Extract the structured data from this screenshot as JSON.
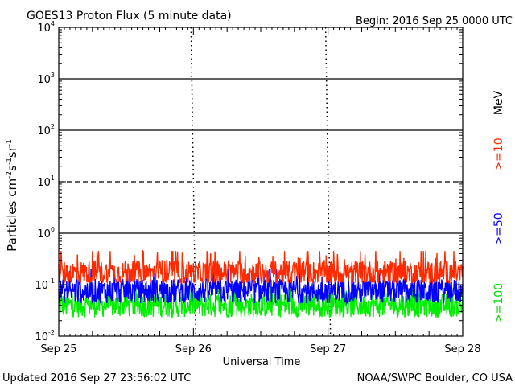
{
  "chart_data": {
    "type": "line",
    "title": "GOES13 Proton Flux (5 minute data)",
    "begin_label": "Begin: 2016 Sep 25 0000 UTC",
    "ylabel_base": "Particles cm",
    "ylabel_exponents": [
      "-2",
      "-1",
      "-1"
    ],
    "ylabel_units": [
      "s",
      "sr"
    ],
    "xlabel": "Universal Time",
    "x_ticks": [
      "Sep 25",
      "Sep 26",
      "Sep 27",
      "Sep 28"
    ],
    "y_scale": "log",
    "ylim": [
      0.01,
      10000
    ],
    "y_ticks": [
      {
        "base": "10",
        "exp": "-2"
      },
      {
        "base": "10",
        "exp": "-1"
      },
      {
        "base": "10",
        "exp": "0"
      },
      {
        "base": "10",
        "exp": "1"
      },
      {
        "base": "10",
        "exp": "2"
      },
      {
        "base": "10",
        "exp": "3"
      },
      {
        "base": "10",
        "exp": "4"
      }
    ],
    "threshold_lines": [
      {
        "value": 1,
        "style": "solid"
      },
      {
        "value": 10,
        "style": "dashed"
      },
      {
        "value": 100,
        "style": "solid"
      },
      {
        "value": 1000,
        "style": "solid"
      }
    ],
    "grid": false,
    "series": [
      {
        "name": ">=10",
        "unit": "MeV",
        "color": "#ff2a00",
        "baseline": 0.17,
        "min": 0.11,
        "max": 0.45
      },
      {
        "name": ">=50",
        "color": "#0000ff",
        "baseline": 0.075,
        "min": 0.035,
        "max": 0.2
      },
      {
        "name": ">=100",
        "color": "#00ee00",
        "baseline": 0.04,
        "min": 0.022,
        "max": 0.09
      }
    ],
    "footer_left": "Updated 2016 Sep 27 23:56:02 UTC",
    "footer_right": "NOAA/SWPC Boulder, CO USA"
  }
}
